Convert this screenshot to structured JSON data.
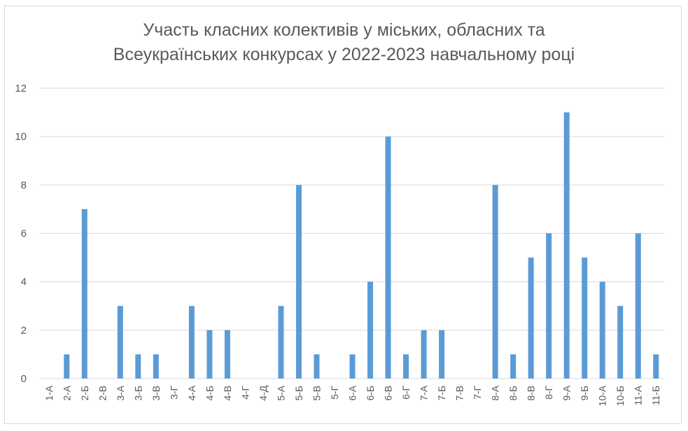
{
  "chart_data": {
    "type": "bar",
    "title": [
      "Участь класних колективів у міських, обласних та",
      "Всеукраїнських конкурсах у 2022-2023 навчальному році"
    ],
    "xlabel": "",
    "ylabel": "",
    "ylim": [
      0,
      12
    ],
    "yticks": [
      0,
      2,
      4,
      6,
      8,
      10,
      12
    ],
    "grid": true,
    "legend": "none",
    "categories": [
      "1-А",
      "2-А",
      "2-Б",
      "2-В",
      "3-А",
      "3-Б",
      "3-В",
      "3-Г",
      "4-А",
      "4-Б",
      "4-В",
      "4-Г",
      "4-Д",
      "5-А",
      "5-Б",
      "5-В",
      "5-Г",
      "6-А",
      "6-Б",
      "6-В",
      "6-Г",
      "7-А",
      "7-Б",
      "7-В",
      "7-Г",
      "8-А",
      "8-Б",
      "8-В",
      "8-Г",
      "9-А",
      "9-Б",
      "10-А",
      "10-Б",
      "11-А",
      "11-Б"
    ],
    "values": [
      0,
      1,
      7,
      0,
      3,
      1,
      1,
      0,
      3,
      2,
      2,
      0,
      0,
      3,
      8,
      1,
      0,
      1,
      4,
      10,
      1,
      2,
      2,
      0,
      0,
      8,
      1,
      5,
      6,
      11,
      5,
      4,
      3,
      6,
      1
    ],
    "colors": {
      "bar": "#5b9bd5",
      "grid": "#d9d9d9",
      "text": "#595959"
    }
  }
}
